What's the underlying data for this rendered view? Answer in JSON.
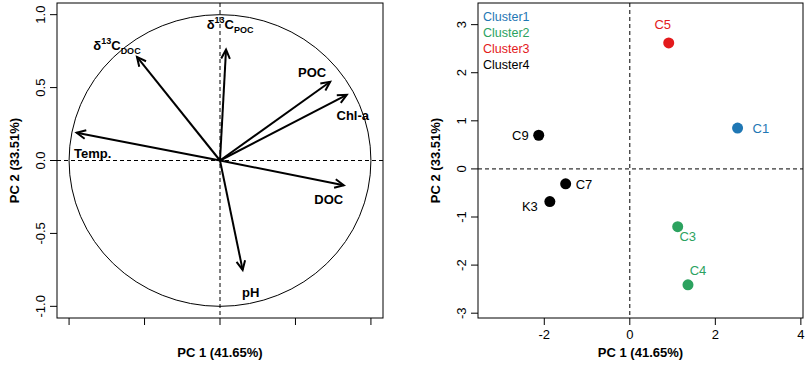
{
  "chart_data": [
    {
      "type": "biplot",
      "x_label": "PC 1 (41.65%)",
      "y_label": "PC 2 (33.51%)",
      "categories": [
        "Temp.",
        "δ13CDOC",
        "δ13CPOC",
        "POC",
        "Chl-a",
        "DOC",
        "pH"
      ],
      "x": [
        -0.95,
        -0.55,
        0.04,
        0.73,
        0.84,
        0.82,
        0.15
      ],
      "values": [
        0.19,
        0.71,
        0.76,
        0.54,
        0.45,
        -0.17,
        -0.75
      ],
      "color": "#000000",
      "xlim": [
        -1.08,
        1.08
      ],
      "ylim": [
        -1.08,
        1.08
      ],
      "xticks": [
        -1,
        -0.5,
        0,
        0.5,
        1
      ],
      "yticks": [
        {
          "value": 1,
          "label": "1.0"
        },
        {
          "value": 0.5,
          "label": "0.5"
        },
        {
          "value": 0,
          "label": "0.0"
        },
        {
          "value": -0.5,
          "label": "-0.5"
        },
        {
          "value": -1,
          "label": "-1.0"
        }
      ],
      "tick_labels": "y"
    },
    {
      "type": "scatter",
      "x_label": "PC 1 (41.65%)",
      "y_label": "PC 2 (33.51%)",
      "series": [
        {
          "name": "Cluster1",
          "color": "#1f77b4",
          "x": [
            2.52
          ],
          "values": [
            0.85
          ],
          "labels": [
            "C1"
          ]
        },
        {
          "name": "Cluster2",
          "color": "#2ca25f",
          "x": [
            1.12,
            1.36
          ],
          "values": [
            -1.2,
            -2.41
          ],
          "labels": [
            "C3",
            "C4"
          ]
        },
        {
          "name": "Cluster3",
          "color": "#e31a1c",
          "x": [
            0.91
          ],
          "values": [
            2.62
          ],
          "labels": [
            "C5"
          ]
        },
        {
          "name": "Cluster4",
          "color": "#000000",
          "x": [
            -2.13,
            -1.5,
            -1.87
          ],
          "values": [
            0.7,
            -0.31,
            -0.68
          ],
          "labels": [
            "C9",
            "C7",
            "K3"
          ]
        }
      ],
      "xlim": [
        -3.55,
        4.05
      ],
      "ylim": [
        -3.1,
        3.45
      ],
      "xticks": [
        -2,
        0,
        2,
        4
      ],
      "yticks": [
        -3,
        -2,
        -1,
        0,
        1,
        2,
        3
      ],
      "legend": "top-left"
    }
  ]
}
